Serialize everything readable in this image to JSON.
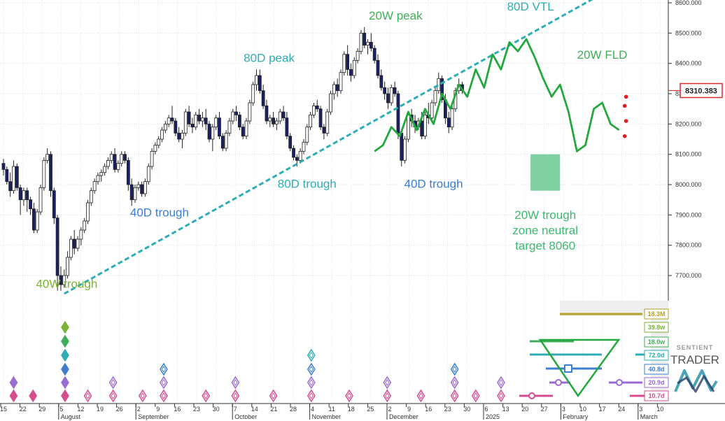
{
  "chart_data": {
    "type": "candlestick",
    "title": "",
    "y_axis": {
      "ticks": [
        "8600.000",
        "8500.000",
        "8400.000",
        "8300.000",
        "8200.000",
        "8100.000",
        "8000.000",
        "7900.000",
        "7800.000",
        "7700.000"
      ],
      "tick_values": [
        8600,
        8500,
        8400,
        8300,
        8200,
        8100,
        8000,
        7900,
        7800,
        7700
      ],
      "range": [
        7620,
        8640
      ]
    },
    "current_price": {
      "label": "8310.383",
      "value": 8310.383,
      "color": "#d92b2b"
    },
    "x_axis": {
      "day_labels": [
        "15",
        "22",
        "29",
        "5",
        "12",
        "19",
        "26",
        "2",
        "9",
        "16",
        "23",
        "30",
        "7",
        "14",
        "21",
        "28",
        "4",
        "11",
        "18",
        "25",
        "2",
        "9",
        "16",
        "23",
        "30",
        "6",
        "13",
        "20",
        "27",
        "3",
        "10",
        "17",
        "24",
        "3",
        "10"
      ],
      "month_labels": [
        {
          "label": "August",
          "index": 3
        },
        {
          "label": "September",
          "index": 7
        },
        {
          "label": "October",
          "index": 12
        },
        {
          "label": "November",
          "index": 16
        },
        {
          "label": "December",
          "index": 20
        },
        {
          "label": "2025",
          "index": 25
        },
        {
          "label": "February",
          "index": 29
        },
        {
          "label": "March",
          "index": 33
        }
      ]
    },
    "candles": [
      [
        0,
        8070,
        8085,
        8030,
        8050
      ],
      [
        0.4,
        8050,
        8060,
        8000,
        8010
      ],
      [
        0.8,
        8010,
        8040,
        7960,
        7980
      ],
      [
        1.2,
        7980,
        8080,
        7970,
        8060
      ],
      [
        1.6,
        8060,
        8070,
        7980,
        7990
      ],
      [
        2.0,
        7990,
        8000,
        7900,
        7950
      ],
      [
        2.4,
        7950,
        7990,
        7930,
        7980
      ],
      [
        2.8,
        7980,
        7990,
        7910,
        7950
      ],
      [
        3.2,
        7950,
        7960,
        7900,
        7920
      ],
      [
        3.6,
        7920,
        7940,
        7840,
        7850
      ],
      [
        4.0,
        7850,
        7920,
        7840,
        7910
      ],
      [
        4.4,
        7910,
        8000,
        7900,
        7990
      ],
      [
        4.8,
        7990,
        8090,
        7980,
        8080
      ],
      [
        5.2,
        8080,
        8120,
        8070,
        8100
      ],
      [
        5.6,
        8100,
        8110,
        7960,
        7980
      ],
      [
        6.0,
        7980,
        7990,
        7870,
        7890
      ],
      [
        6.4,
        7890,
        7900,
        7650,
        7700
      ],
      [
        6.8,
        7700,
        7730,
        7650,
        7670
      ],
      [
        7.2,
        7670,
        7720,
        7660,
        7700
      ],
      [
        7.6,
        7700,
        7780,
        7690,
        7760
      ],
      [
        8.0,
        7760,
        7830,
        7750,
        7820
      ],
      [
        8.4,
        7820,
        7850,
        7770,
        7790
      ],
      [
        8.8,
        7790,
        7830,
        7780,
        7820
      ],
      [
        9.2,
        7820,
        7860,
        7800,
        7850
      ],
      [
        9.6,
        7850,
        7890,
        7840,
        7880
      ],
      [
        10.0,
        7880,
        7950,
        7870,
        7940
      ],
      [
        10.4,
        7940,
        7990,
        7930,
        7980
      ],
      [
        10.8,
        7980,
        8020,
        7970,
        8010
      ],
      [
        11.2,
        8010,
        8040,
        8000,
        8030
      ],
      [
        11.6,
        8030,
        8050,
        8010,
        8040
      ],
      [
        12.0,
        8040,
        8070,
        8030,
        8060
      ],
      [
        12.4,
        8060,
        8090,
        8050,
        8080
      ],
      [
        12.8,
        8080,
        8110,
        8070,
        8100
      ],
      [
        13.2,
        8100,
        8120,
        8040,
        8050
      ],
      [
        13.6,
        8050,
        8080,
        8040,
        8070
      ],
      [
        14.0,
        8070,
        8110,
        8060,
        8100
      ],
      [
        14.4,
        8100,
        8110,
        8070,
        8080
      ],
      [
        14.8,
        8080,
        8090,
        7980,
        8000
      ],
      [
        15.2,
        8000,
        8020,
        7930,
        7950
      ],
      [
        15.6,
        7950,
        8000,
        7940,
        7990
      ],
      [
        16.0,
        7990,
        8010,
        7980,
        8000
      ],
      [
        16.4,
        8000,
        8010,
        7960,
        7970
      ],
      [
        16.8,
        7970,
        8020,
        7960,
        8010
      ],
      [
        17.2,
        8010,
        8070,
        8000,
        8060
      ],
      [
        17.6,
        8060,
        8120,
        8050,
        8110
      ],
      [
        18.0,
        8110,
        8140,
        8100,
        8130
      ],
      [
        18.4,
        8130,
        8160,
        8120,
        8150
      ],
      [
        18.8,
        8150,
        8190,
        8140,
        8180
      ],
      [
        19.2,
        8180,
        8210,
        8170,
        8200
      ],
      [
        19.6,
        8200,
        8230,
        8190,
        8220
      ],
      [
        20.0,
        8220,
        8260,
        8200,
        8210
      ],
      [
        20.4,
        8210,
        8220,
        8160,
        8170
      ],
      [
        20.8,
        8170,
        8190,
        8140,
        8150
      ],
      [
        21.2,
        8150,
        8180,
        8120,
        8170
      ],
      [
        21.6,
        8170,
        8250,
        8160,
        8240
      ],
      [
        22.0,
        8240,
        8260,
        8190,
        8200
      ],
      [
        22.4,
        8200,
        8220,
        8170,
        8190
      ],
      [
        22.8,
        8190,
        8240,
        8180,
        8230
      ],
      [
        23.2,
        8230,
        8250,
        8200,
        8210
      ],
      [
        23.6,
        8210,
        8240,
        8190,
        8220
      ],
      [
        24.0,
        8220,
        8250,
        8180,
        8200
      ],
      [
        24.4,
        8200,
        8210,
        8140,
        8150
      ],
      [
        24.8,
        8150,
        8200,
        8110,
        8190
      ],
      [
        25.2,
        8190,
        8230,
        8180,
        8220
      ],
      [
        25.6,
        8220,
        8240,
        8150,
        8160
      ],
      [
        26.0,
        8160,
        8170,
        8110,
        8120
      ],
      [
        26.4,
        8120,
        8180,
        8110,
        8170
      ],
      [
        26.8,
        8170,
        8220,
        8160,
        8210
      ],
      [
        27.2,
        8210,
        8250,
        8200,
        8240
      ],
      [
        27.6,
        8240,
        8260,
        8210,
        8230
      ],
      [
        28.0,
        8230,
        8240,
        8180,
        8190
      ],
      [
        28.4,
        8190,
        8200,
        8150,
        8160
      ],
      [
        28.8,
        8160,
        8220,
        8150,
        8210
      ],
      [
        29.2,
        8210,
        8280,
        8200,
        8270
      ],
      [
        29.6,
        8270,
        8340,
        8260,
        8330
      ],
      [
        30.0,
        8330,
        8380,
        8310,
        8360
      ],
      [
        30.4,
        8360,
        8380,
        8300,
        8310
      ],
      [
        30.8,
        8310,
        8330,
        8250,
        8260
      ],
      [
        31.2,
        8260,
        8280,
        8200,
        8210
      ],
      [
        31.6,
        8210,
        8230,
        8190,
        8220
      ],
      [
        32.0,
        8220,
        8240,
        8190,
        8200
      ],
      [
        32.4,
        8200,
        8220,
        8180,
        8210
      ],
      [
        32.8,
        8210,
        8250,
        8200,
        8240
      ],
      [
        33.2,
        8240,
        8260,
        8210,
        8220
      ],
      [
        33.6,
        8220,
        8240,
        8150,
        8160
      ],
      [
        34.0,
        8160,
        8170,
        8110,
        8120
      ],
      [
        34.4,
        8120,
        8130,
        8080,
        8090
      ],
      [
        34.8,
        8090,
        8100,
        8060,
        8080
      ],
      [
        35.2,
        8080,
        8120,
        8070,
        8110
      ],
      [
        35.6,
        8110,
        8150,
        8100,
        8140
      ],
      [
        36.0,
        8140,
        8200,
        8130,
        8190
      ],
      [
        36.4,
        8190,
        8240,
        8180,
        8230
      ],
      [
        36.8,
        8230,
        8270,
        8220,
        8260
      ],
      [
        37.2,
        8260,
        8280,
        8240,
        8250
      ],
      [
        37.6,
        8250,
        8260,
        8180,
        8190
      ],
      [
        38.0,
        8190,
        8200,
        8150,
        8170
      ],
      [
        38.4,
        8170,
        8250,
        8160,
        8240
      ],
      [
        38.8,
        8240,
        8310,
        8230,
        8300
      ],
      [
        39.2,
        8300,
        8340,
        8280,
        8330
      ],
      [
        39.6,
        8330,
        8350,
        8290,
        8310
      ],
      [
        40.0,
        8310,
        8380,
        8300,
        8370
      ],
      [
        40.4,
        8370,
        8440,
        8360,
        8430
      ],
      [
        40.8,
        8430,
        8460,
        8360,
        8380
      ],
      [
        41.2,
        8380,
        8400,
        8340,
        8360
      ],
      [
        41.6,
        8360,
        8420,
        8350,
        8410
      ],
      [
        42.0,
        8410,
        8450,
        8400,
        8440
      ],
      [
        42.4,
        8440,
        8510,
        8430,
        8500
      ],
      [
        42.8,
        8500,
        8520,
        8450,
        8460
      ],
      [
        43.2,
        8460,
        8480,
        8430,
        8470
      ],
      [
        43.6,
        8470,
        8500,
        8440,
        8450
      ],
      [
        44.0,
        8450,
        8460,
        8400,
        8410
      ],
      [
        44.4,
        8410,
        8430,
        8350,
        8360
      ],
      [
        44.8,
        8360,
        8380,
        8310,
        8320
      ],
      [
        45.2,
        8320,
        8340,
        8280,
        8300
      ],
      [
        45.6,
        8300,
        8320,
        8250,
        8270
      ],
      [
        46.0,
        8270,
        8330,
        8260,
        8320
      ],
      [
        46.4,
        8320,
        8340,
        8290,
        8300
      ],
      [
        46.8,
        8300,
        8310,
        8150,
        8170
      ],
      [
        47.2,
        8170,
        8180,
        8060,
        8080
      ],
      [
        47.6,
        8080,
        8160,
        8070,
        8150
      ],
      [
        48.0,
        8150,
        8240,
        8140,
        8230
      ],
      [
        48.4,
        8230,
        8250,
        8190,
        8210
      ],
      [
        48.8,
        8210,
        8230,
        8170,
        8190
      ],
      [
        49.2,
        8190,
        8220,
        8180,
        8210
      ],
      [
        49.6,
        8210,
        8240,
        8150,
        8160
      ],
      [
        50.0,
        8160,
        8240,
        8150,
        8230
      ],
      [
        50.4,
        8230,
        8270,
        8200,
        8220
      ],
      [
        50.8,
        8220,
        8280,
        8210,
        8270
      ],
      [
        51.2,
        8270,
        8320,
        8260,
        8310
      ],
      [
        51.6,
        8310,
        8370,
        8300,
        8350
      ],
      [
        52.0,
        8350,
        8360,
        8270,
        8280
      ],
      [
        52.4,
        8280,
        8300,
        8200,
        8220
      ],
      [
        52.8,
        8220,
        8240,
        8170,
        8190
      ],
      [
        53.2,
        8190,
        8260,
        8180,
        8250
      ],
      [
        53.6,
        8250,
        8320,
        8240,
        8310
      ],
      [
        54.0,
        8310,
        8350,
        8300,
        8330
      ],
      [
        54.4,
        8330,
        8340,
        8300,
        8310
      ]
    ],
    "projection_20w_fld": [
      [
        44,
        8110
      ],
      [
        45,
        8130
      ],
      [
        46,
        8190
      ],
      [
        47,
        8160
      ],
      [
        48,
        8240
      ],
      [
        49,
        8180
      ],
      [
        50,
        8250
      ],
      [
        51,
        8200
      ],
      [
        52,
        8300
      ],
      [
        53,
        8250
      ],
      [
        54,
        8330
      ],
      [
        55,
        8290
      ],
      [
        56,
        8380
      ],
      [
        57,
        8320
      ],
      [
        58,
        8430
      ],
      [
        59,
        8380
      ],
      [
        60,
        8470
      ],
      [
        61,
        8440
      ],
      [
        62,
        8480
      ],
      [
        63,
        8420
      ],
      [
        64,
        8350
      ],
      [
        65,
        8290
      ],
      [
        66,
        8330
      ],
      [
        67,
        8240
      ],
      [
        68,
        8110
      ],
      [
        69,
        8130
      ],
      [
        70,
        8250
      ],
      [
        71,
        8270
      ],
      [
        72,
        8200
      ],
      [
        73,
        8180
      ]
    ],
    "trendline_80d_vtl": {
      "name": "80D VTL",
      "points": [
        [
          7.2,
          7640
        ],
        [
          71,
          8630
        ]
      ]
    },
    "target_zone": {
      "label_lines": [
        "20W trough",
        "zone neutral",
        "target 8060"
      ],
      "x_range": [
        62.5,
        66
      ],
      "y_range": [
        7980,
        8100
      ],
      "color": "#3cb96e"
    },
    "red_dots": [
      [
        73.5,
        8290
      ],
      [
        73.5,
        8260
      ],
      [
        73.5,
        8210
      ],
      [
        73.5,
        8160
      ]
    ],
    "annotations": [
      {
        "text": "40W trough",
        "x": 7.5,
        "y": 7660,
        "color": "#7ab332"
      },
      {
        "text": "40D trough",
        "x": 18.5,
        "y": 7895,
        "color": "#3a7fd1"
      },
      {
        "text": "80D peak",
        "x": 31.5,
        "y": 8405,
        "color": "#2eaeb4"
      },
      {
        "text": "80D trough",
        "x": 36,
        "y": 7990,
        "color": "#2eaeb4"
      },
      {
        "text": "20W peak",
        "x": 46.5,
        "y": 8545,
        "color": "#3fae56"
      },
      {
        "text": "40D trough",
        "x": 51,
        "y": 7990,
        "color": "#3a7fd1"
      },
      {
        "text": "80D VTL",
        "x": 62.5,
        "y": 8575,
        "color": "#2eaeb4"
      },
      {
        "text": "20W FLD",
        "x": 71,
        "y": 8415,
        "color": "#3fae56"
      }
    ],
    "cycle_labels": [
      {
        "text": "18.3M",
        "color": "#b3a326"
      },
      {
        "text": "39.8w",
        "color": "#7ab332"
      },
      {
        "text": "18.0w",
        "color": "#3fae56"
      },
      {
        "text": "72.0d",
        "color": "#2eaeb4"
      },
      {
        "text": "40.8d",
        "color": "#3a7fd1"
      },
      {
        "text": "20.9d",
        "color": "#9a6bd0"
      },
      {
        "text": "10.7d",
        "color": "#d64d8f"
      }
    ],
    "diamond_rows": {
      "colors": [
        "#7ab332",
        "#3fae56",
        "#2eaeb4",
        "#3a7fd1",
        "#9a6bd0",
        "#d64d8f"
      ],
      "markers": [
        {
          "x": 1.2,
          "levels": [
            4,
            5
          ]
        },
        {
          "x": 3.5,
          "levels": [
            5
          ]
        },
        {
          "x": 7.3,
          "levels": [
            0,
            1,
            2,
            3,
            4,
            5
          ]
        },
        {
          "x": 10,
          "levels": [
            5
          ]
        },
        {
          "x": 13,
          "levels": [
            4,
            5
          ]
        },
        {
          "x": 16.5,
          "levels": [
            5
          ]
        },
        {
          "x": 19,
          "levels": [
            3,
            4,
            5
          ]
        },
        {
          "x": 24,
          "levels": [
            5
          ]
        },
        {
          "x": 27.5,
          "levels": [
            4,
            5
          ]
        },
        {
          "x": 32,
          "levels": [
            5
          ]
        },
        {
          "x": 36.5,
          "levels": [
            2,
            3,
            4,
            5
          ]
        },
        {
          "x": 41,
          "levels": [
            5
          ]
        },
        {
          "x": 45.5,
          "levels": [
            4,
            5
          ]
        },
        {
          "x": 49.5,
          "levels": [
            5
          ]
        },
        {
          "x": 53.5,
          "levels": [
            3,
            4,
            5
          ]
        },
        {
          "x": 56,
          "levels": [
            5
          ]
        },
        {
          "x": 59,
          "levels": [
            4,
            5
          ]
        }
      ]
    },
    "logo": {
      "line1": "SENTIENT",
      "line2": "TRADER"
    }
  }
}
